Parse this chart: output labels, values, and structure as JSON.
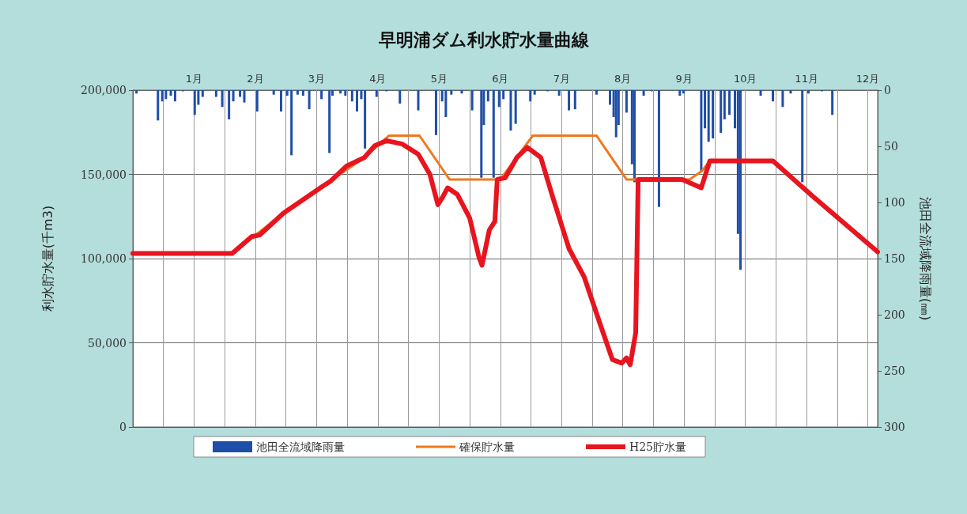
{
  "chart_data": {
    "type": "line",
    "title": "早明浦ダム利水貯水量曲線",
    "ylabel": "利水貯水量(千m3)",
    "y2label": "池田全流域降雨量(㎜)",
    "xlim": [
      0,
      12.16
    ],
    "xticks": [
      {
        "value": 0.5,
        "label": null
      },
      {
        "value": 1,
        "label": "1月"
      },
      {
        "value": 1.5,
        "label": null
      },
      {
        "value": 2,
        "label": "2月"
      },
      {
        "value": 2.5,
        "label": null
      },
      {
        "value": 3,
        "label": "3月"
      },
      {
        "value": 3.5,
        "label": null
      },
      {
        "value": 4,
        "label": "4月"
      },
      {
        "value": 4.5,
        "label": null
      },
      {
        "value": 5,
        "label": "5月"
      },
      {
        "value": 5.5,
        "label": null
      },
      {
        "value": 6,
        "label": "6月"
      },
      {
        "value": 6.5,
        "label": null
      },
      {
        "value": 7,
        "label": "7月"
      },
      {
        "value": 7.5,
        "label": null
      },
      {
        "value": 8,
        "label": "8月"
      },
      {
        "value": 8.5,
        "label": null
      },
      {
        "value": 9,
        "label": "9月"
      },
      {
        "value": 9.5,
        "label": null
      },
      {
        "value": 10,
        "label": "10月"
      },
      {
        "value": 10.5,
        "label": null
      },
      {
        "value": 11,
        "label": "11月"
      },
      {
        "value": 11.5,
        "label": null
      },
      {
        "value": 12,
        "label": "12月"
      }
    ],
    "ylim": [
      0,
      200000
    ],
    "yticks": [
      0,
      {
        "value": 50000,
        "label": "50,000"
      },
      {
        "value": 100000,
        "label": "100,000"
      },
      {
        "value": 150000,
        "label": "150,000"
      },
      {
        "value": 200000,
        "label": "200,000"
      }
    ],
    "y2lim": [
      300,
      0
    ],
    "y2ticks": [
      0,
      50,
      100,
      150,
      200,
      250,
      300
    ],
    "grid": true,
    "legend": "bottom",
    "marker": "none",
    "line_style": "solid",
    "series": [
      {
        "name": "池田全流域降雨量",
        "type": "bar",
        "axis": "y2",
        "color": "#1f4ea8",
        "x": [
          0.06,
          0.41,
          0.48,
          0.54,
          0.62,
          0.69,
          0.82,
          1.01,
          1.07,
          1.14,
          1.36,
          1.46,
          1.57,
          1.64,
          1.75,
          1.82,
          2.03,
          2.3,
          2.42,
          2.52,
          2.59,
          2.69,
          2.78,
          2.88,
          3.08,
          3.21,
          3.26,
          3.39,
          3.47,
          3.58,
          3.66,
          3.73,
          3.79,
          3.98,
          4.14,
          4.36,
          4.66,
          4.95,
          5.05,
          5.11,
          5.2,
          5.37,
          5.54,
          5.69,
          5.73,
          5.8,
          5.89,
          5.98,
          6.05,
          6.17,
          6.25,
          6.49,
          6.56,
          6.77,
          6.96,
          7.12,
          7.22,
          7.57,
          7.79,
          7.85,
          7.89,
          7.93,
          8.06,
          8.15,
          8.19,
          8.34,
          8.47,
          8.59,
          8.93,
          8.99,
          9.28,
          9.34,
          9.4,
          9.47,
          9.6,
          9.66,
          9.74,
          9.83,
          9.88,
          9.92,
          10.25,
          10.45,
          10.61,
          10.74,
          10.93,
          11.03,
          11.25,
          11.42
        ],
        "values": [
          3,
          27,
          10,
          8,
          5,
          10,
          1,
          22,
          13,
          6,
          6,
          15,
          26,
          10,
          6,
          11,
          19,
          4,
          19,
          5,
          58,
          4,
          5,
          17,
          8,
          56,
          5,
          3,
          5,
          10,
          19,
          8,
          52,
          6,
          1,
          12,
          18,
          40,
          10,
          24,
          4,
          3,
          18,
          78,
          31,
          10,
          78,
          15,
          8,
          36,
          30,
          10,
          4,
          1,
          5,
          18,
          17,
          4,
          13,
          24,
          42,
          31,
          20,
          66,
          82,
          5,
          1,
          104,
          5,
          3,
          73,
          34,
          46,
          43,
          38,
          26,
          22,
          34,
          128,
          160,
          5,
          10,
          15,
          3,
          82,
          3,
          1,
          22
        ]
      },
      {
        "name": "確保貯水量",
        "color": "#f07820",
        "x": [
          0,
          1.62,
          2.46,
          3.1,
          3.78,
          4.18,
          4.68,
          5.17,
          6.0,
          6.53,
          7.57,
          8.06,
          9.09,
          9.29,
          9.42,
          10.45
        ],
        "values": [
          103000,
          103000,
          127000,
          143000,
          160000,
          173000,
          173000,
          147000,
          147000,
          173000,
          173000,
          147000,
          147000,
          152000,
          158000,
          158000
        ]
      },
      {
        "name": "H25貯水量",
        "color": "#e8141e",
        "x": [
          0,
          1.62,
          1.94,
          2.07,
          2.46,
          2.78,
          3.1,
          3.23,
          3.49,
          3.78,
          3.95,
          4.14,
          4.4,
          4.66,
          4.85,
          4.98,
          5.05,
          5.14,
          5.3,
          5.5,
          5.65,
          5.7,
          5.82,
          5.91,
          5.95,
          6.08,
          6.27,
          6.44,
          6.66,
          6.86,
          7.12,
          7.37,
          7.63,
          7.83,
          7.98,
          8.06,
          8.12,
          8.21,
          8.25,
          8.54,
          8.97,
          9.28,
          9.42,
          10.45,
          11.1,
          12.16
        ],
        "values": [
          103000,
          103000,
          113000,
          114000,
          127000,
          135000,
          143000,
          146000,
          155000,
          160000,
          167000,
          170000,
          168000,
          162000,
          150000,
          132000,
          136000,
          142000,
          138000,
          124000,
          101000,
          96000,
          117000,
          122000,
          147000,
          148000,
          160000,
          166000,
          160000,
          136000,
          106000,
          89000,
          61000,
          40000,
          38000,
          41000,
          37000,
          56000,
          147000,
          147000,
          147000,
          142000,
          158000,
          158000,
          137000,
          104000
        ]
      }
    ]
  }
}
